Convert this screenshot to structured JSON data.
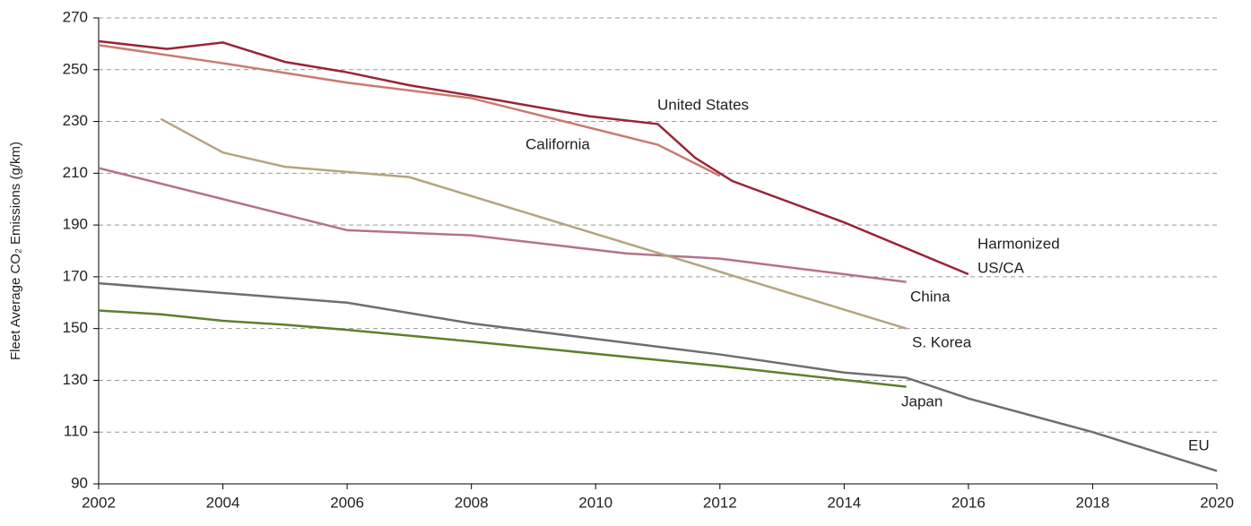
{
  "chart_data": {
    "type": "line",
    "y_label": "Fleet Average CO₂ Emissions (g/km)",
    "xlim": [
      2002,
      2020
    ],
    "xticks": [
      2002,
      2004,
      2006,
      2008,
      2010,
      2012,
      2014,
      2016,
      2018,
      2020
    ],
    "ylim": [
      90,
      270
    ],
    "yticks": [
      90,
      110,
      130,
      150,
      170,
      190,
      210,
      230,
      250,
      270
    ],
    "grid": true,
    "series": [
      {
        "name": "United States",
        "color": "#9b2335",
        "x": [
          2002,
          2003.1,
          2004,
          2005,
          2006,
          2007,
          2008,
          2009.9,
          2011,
          2011.6,
          2012.2,
          2014,
          2016
        ],
        "values": [
          261,
          258,
          260.5,
          253,
          249,
          244,
          240,
          232,
          229,
          216,
          207,
          191,
          171
        ]
      },
      {
        "name": "California",
        "color": "#c97b70",
        "x": [
          2002,
          2004,
          2006,
          2008,
          2011,
          2012
        ],
        "values": [
          259.5,
          252.5,
          245,
          239,
          221,
          209
        ]
      },
      {
        "name": "China",
        "color": "#b5728a",
        "x": [
          2002,
          2006,
          2008,
          2010.5,
          2012,
          2015
        ],
        "values": [
          212,
          188,
          186,
          179,
          177,
          168
        ]
      },
      {
        "name": "S. Korea",
        "color": "#b5a47e",
        "x": [
          2003,
          2004,
          2005,
          2007,
          2015
        ],
        "values": [
          231,
          218,
          212.5,
          208.5,
          150
        ]
      },
      {
        "name": "EU",
        "color": "#6d6e71",
        "x": [
          2002,
          2006,
          2008,
          2010,
          2012,
          2014,
          2015,
          2016,
          2018,
          2020
        ],
        "values": [
          167.5,
          160,
          152,
          146,
          140,
          133,
          131,
          123,
          110,
          95
        ]
      },
      {
        "name": "Japan",
        "color": "#5f7f2b",
        "x": [
          2002,
          2003,
          2004,
          2005,
          2006,
          2008,
          2012,
          2015
        ],
        "values": [
          157,
          155.5,
          153,
          151.5,
          149.5,
          145,
          135.5,
          127.5
        ]
      }
    ],
    "annotations": [
      {
        "lines": [
          "Harmonized",
          "US/CA"
        ]
      }
    ]
  }
}
